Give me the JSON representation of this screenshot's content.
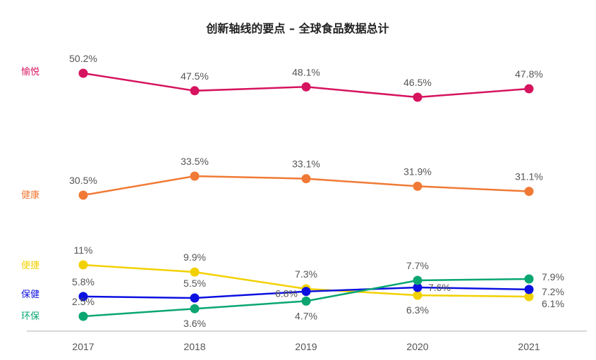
{
  "chart_data": {
    "type": "line",
    "title": "创新轴线的要点 – 全球食品数据总计",
    "xlabel": "",
    "ylabel": "",
    "categories": [
      "2017",
      "2018",
      "2019",
      "2020",
      "2021"
    ],
    "series": [
      {
        "name": "愉悦",
        "color": "#d6135f",
        "values": [
          50.2,
          47.5,
          48.1,
          46.5,
          47.8
        ],
        "labels": [
          "50.2%",
          "47.5%",
          "48.1%",
          "46.5%",
          "47.8%"
        ]
      },
      {
        "name": "健康",
        "color": "#f07a35",
        "values": [
          30.5,
          33.5,
          33.1,
          31.9,
          31.1
        ],
        "labels": [
          "30.5%",
          "33.5%",
          "33.1%",
          "31.9%",
          "31.1%"
        ]
      },
      {
        "name": "便捷",
        "color": "#f2d100",
        "values": [
          11,
          9.9,
          7.3,
          6.3,
          6.1
        ],
        "labels": [
          "11%",
          "9.9%",
          "7.3%",
          "6.3%",
          "6.1%"
        ]
      },
      {
        "name": "保健",
        "color": "#0c10e0",
        "values": [
          5.8,
          5.5,
          6.8,
          7.6,
          7.2
        ],
        "labels": [
          "5.8%",
          "5.5%",
          "6.8%",
          "7.6%",
          "7.2%"
        ]
      },
      {
        "name": "环保",
        "color": "#0aa672",
        "values": [
          2.5,
          3.6,
          4.7,
          7.7,
          7.9
        ],
        "labels": [
          "2.5%",
          "3.6%",
          "4.7%",
          "7.7%",
          "7.9%"
        ]
      }
    ],
    "grid": false,
    "legend": "left"
  }
}
